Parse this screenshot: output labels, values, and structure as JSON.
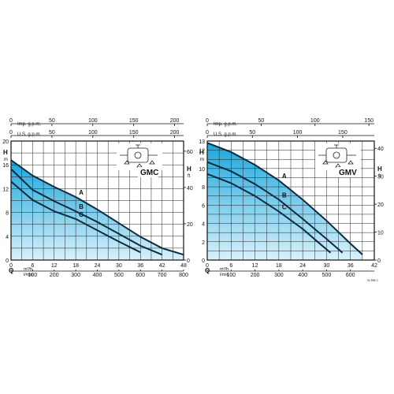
{
  "chart_data": [
    {
      "type": "area",
      "model": "GMC",
      "units": {
        "top_gpm_imp": "Imp. g.p.m.",
        "top_gpm_us": "U.S. g.p.m.",
        "left_h": "H",
        "left_h_unit": "m",
        "right_h": "H",
        "right_h_unit": "ft",
        "q": "Q",
        "q_m3h": "m³/h",
        "q_lmin": "l/min"
      },
      "axes": {
        "q_m3h": {
          "range": [
            0,
            48
          ],
          "ticks": [
            0,
            6,
            12,
            18,
            24,
            30,
            36,
            42,
            48
          ]
        },
        "q_lmin_ticks": [
          0,
          100,
          200,
          300,
          400,
          500,
          600,
          700,
          800
        ],
        "h_m": {
          "range": [
            0,
            20
          ],
          "ticks": [
            0,
            4,
            8,
            12,
            16,
            20
          ]
        },
        "h_ft_ticks": [
          0,
          20,
          40,
          60
        ],
        "imp_gpm_ticks": [
          0,
          50,
          100,
          150,
          200
        ],
        "us_gpm_ticks": [
          0,
          50,
          100,
          150,
          200
        ]
      },
      "series": [
        {
          "name": "A",
          "x": [
            0,
            6,
            12,
            18,
            24,
            30,
            36,
            42,
            48
          ],
          "y": [
            16.8,
            14.2,
            12.3,
            10.6,
            8.5,
            6.2,
            3.9,
            2.0,
            0.9
          ]
        },
        {
          "name": "B",
          "x": [
            0,
            6,
            12,
            18,
            24,
            30,
            36,
            42
          ],
          "y": [
            15.3,
            11.8,
            9.9,
            8.2,
            6.4,
            4.4,
            2.4,
            0.9
          ]
        },
        {
          "name": "C",
          "x": [
            0,
            6,
            12,
            18,
            24,
            30,
            36
          ],
          "y": [
            13.2,
            10.1,
            8.2,
            6.9,
            5.0,
            3.1,
            1.3
          ]
        }
      ]
    },
    {
      "type": "area",
      "model": "GMV",
      "units": {
        "top_gpm_imp": "Imp. g.p.m.",
        "top_gpm_us": "U.S. g.p.m.",
        "left_h": "H",
        "left_h_unit": "m",
        "right_h": "H",
        "right_h_unit": "ft",
        "q": "Q",
        "q_m3h": "m³/h",
        "q_lmin": "l/min"
      },
      "axes": {
        "q_m3h": {
          "range": [
            0,
            42
          ],
          "ticks": [
            0,
            6,
            12,
            18,
            24,
            30,
            36,
            42
          ]
        },
        "q_lmin_ticks": [
          0,
          100,
          200,
          300,
          400,
          500,
          600
        ],
        "h_m": {
          "range": [
            0,
            13
          ],
          "ticks": [
            0,
            2,
            4,
            6,
            8,
            10,
            12,
            13
          ]
        },
        "h_ft_ticks": [
          0,
          10,
          20,
          30,
          40
        ],
        "imp_gpm_ticks": [
          0,
          50,
          100,
          150
        ],
        "us_gpm_ticks": [
          0,
          50,
          100,
          150
        ]
      },
      "series": [
        {
          "name": "A",
          "x": [
            0,
            6,
            12,
            18,
            24,
            30,
            36,
            39
          ],
          "y": [
            12.8,
            11.8,
            10.4,
            8.7,
            6.6,
            4.3,
            1.8,
            0.6
          ]
        },
        {
          "name": "B",
          "x": [
            0,
            6,
            12,
            18,
            24,
            30,
            34
          ],
          "y": [
            10.7,
            9.7,
            8.3,
            6.6,
            4.5,
            2.3,
            0.8
          ]
        },
        {
          "name": "C",
          "x": [
            0,
            6,
            12,
            18,
            24,
            28,
            31
          ],
          "y": [
            9.4,
            8.4,
            7.0,
            5.3,
            3.4,
            1.9,
            0.8
          ]
        }
      ]
    }
  ],
  "footer_code": "31 896 C"
}
